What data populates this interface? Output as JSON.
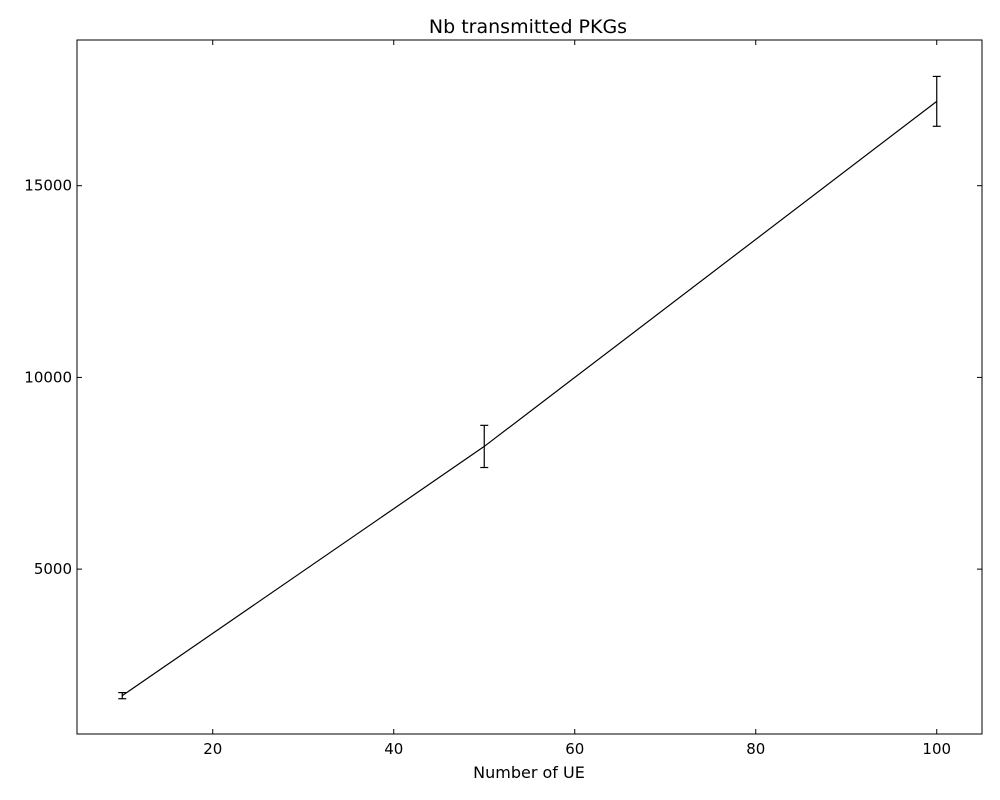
{
  "chart_data": {
    "type": "line",
    "title": "Nb transmitted PKGs",
    "xlabel": "Number of UE",
    "ylabel": "",
    "xlim": [
      5,
      105
    ],
    "ylim": [
      700,
      18800
    ],
    "xticks": [
      20,
      40,
      60,
      80,
      100
    ],
    "yticks": [
      5000,
      10000,
      15000
    ],
    "grid": false,
    "legend": "none",
    "line_color": "#000000",
    "series": [
      {
        "x": [
          10,
          50,
          100
        ],
        "y": [
          1700,
          8200,
          17200
        ],
        "yerr": [
          80,
          550,
          650
        ]
      }
    ]
  }
}
